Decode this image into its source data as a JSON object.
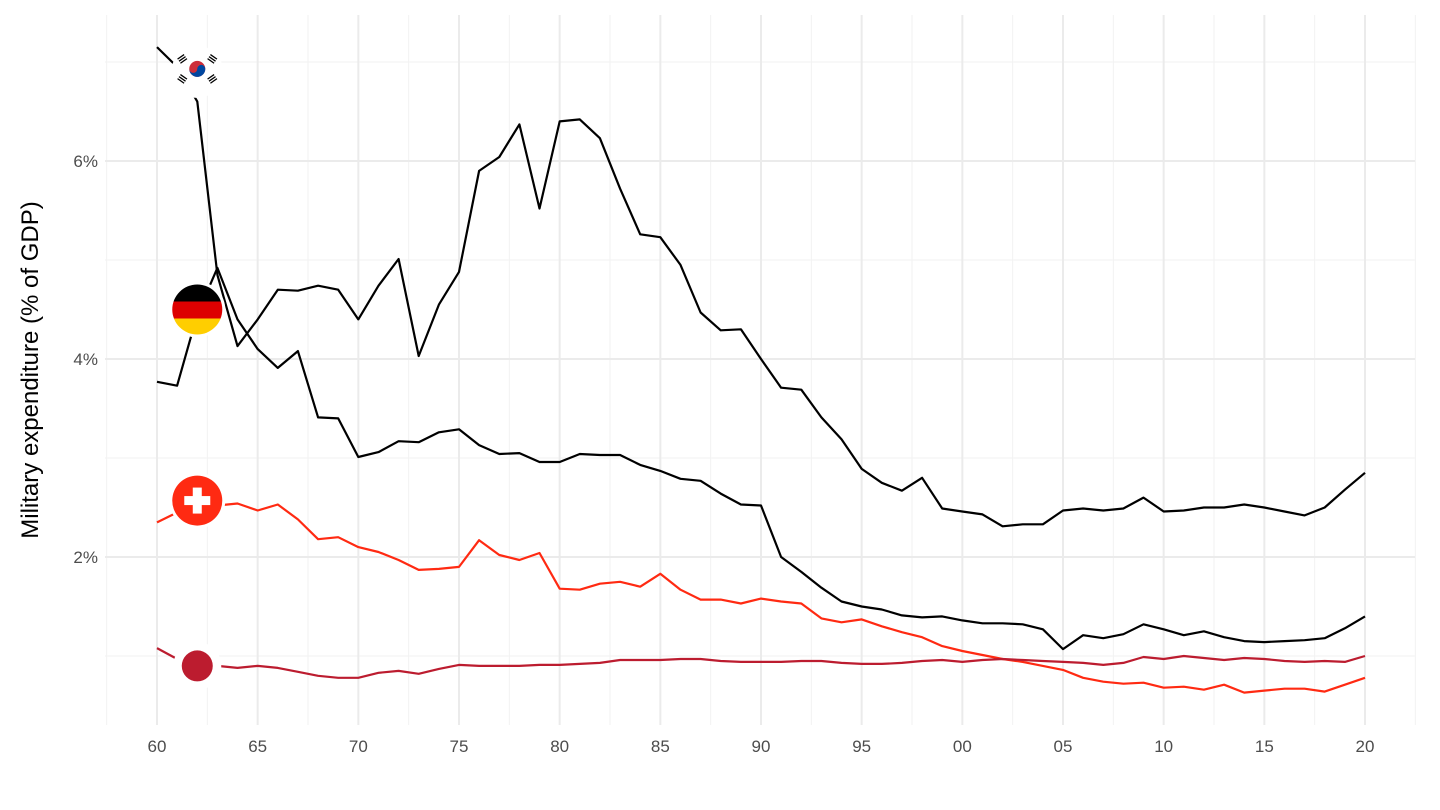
{
  "chart_data": {
    "type": "line",
    "title": "",
    "xlabel": "",
    "ylabel": "Military expenditure (% of GDP)",
    "xlim": [
      1957.5,
      2022.5
    ],
    "ylim": [
      0.3,
      7.45
    ],
    "grid": true,
    "x_ticks": [
      1960,
      1965,
      1970,
      1975,
      1980,
      1985,
      1990,
      1995,
      2000,
      2005,
      2010,
      2015,
      2020
    ],
    "x_tick_labels": [
      "60",
      "65",
      "70",
      "75",
      "80",
      "85",
      "90",
      "95",
      "00",
      "05",
      "10",
      "15",
      "20"
    ],
    "y_ticks": [
      2,
      4,
      6
    ],
    "y_tick_labels": [
      "2%",
      "4%",
      "6%"
    ],
    "x_start": 1960,
    "flag_year": 1962,
    "series": [
      {
        "name": "South Korea",
        "flag": "korea-flag",
        "color": "#000000",
        "flag_value": 6.9,
        "values": [
          7.15,
          6.95,
          6.6,
          4.85,
          4.13,
          4.4,
          4.7,
          4.69,
          4.74,
          4.7,
          4.4,
          4.74,
          5.01,
          4.03,
          4.55,
          4.88,
          5.9,
          6.04,
          6.37,
          5.52,
          6.4,
          6.42,
          6.23,
          5.72,
          5.26,
          5.23,
          4.95,
          4.47,
          4.29,
          4.3,
          4.0,
          3.71,
          3.69,
          3.41,
          3.19,
          2.89,
          2.75,
          2.67,
          2.8,
          2.49,
          2.46,
          2.43,
          2.31,
          2.33,
          2.33,
          2.47,
          2.49,
          2.47,
          2.49,
          2.6,
          2.46,
          2.47,
          2.5,
          2.5,
          2.53,
          2.5,
          2.46,
          2.42,
          2.5,
          2.68,
          2.85
        ]
      },
      {
        "name": "Germany",
        "flag": "germany-flag",
        "color": "#000000",
        "flag_value": 4.5,
        "values": [
          3.77,
          3.73,
          4.45,
          4.92,
          4.4,
          4.1,
          3.91,
          4.08,
          3.41,
          3.4,
          3.01,
          3.06,
          3.17,
          3.16,
          3.26,
          3.29,
          3.13,
          3.04,
          3.05,
          2.96,
          2.96,
          3.04,
          3.03,
          3.03,
          2.93,
          2.87,
          2.79,
          2.77,
          2.64,
          2.53,
          2.52,
          2.0,
          1.85,
          1.69,
          1.55,
          1.5,
          1.47,
          1.41,
          1.39,
          1.4,
          1.36,
          1.33,
          1.33,
          1.32,
          1.27,
          1.07,
          1.21,
          1.18,
          1.22,
          1.32,
          1.27,
          1.21,
          1.25,
          1.19,
          1.15,
          1.14,
          1.15,
          1.16,
          1.18,
          1.28,
          1.4
        ]
      },
      {
        "name": "Switzerland",
        "flag": "switzerland-flag",
        "color": "#FF2A12",
        "flag_value": 2.57,
        "values": [
          2.35,
          2.45,
          2.5,
          2.52,
          2.54,
          2.47,
          2.53,
          2.38,
          2.18,
          2.2,
          2.1,
          2.05,
          1.97,
          1.87,
          1.88,
          1.9,
          2.17,
          2.02,
          1.97,
          2.04,
          1.68,
          1.67,
          1.73,
          1.75,
          1.7,
          1.83,
          1.67,
          1.57,
          1.57,
          1.53,
          1.58,
          1.55,
          1.53,
          1.38,
          1.34,
          1.37,
          1.3,
          1.24,
          1.19,
          1.1,
          1.05,
          1.01,
          0.97,
          0.94,
          0.9,
          0.86,
          0.78,
          0.74,
          0.72,
          0.73,
          0.68,
          0.69,
          0.66,
          0.71,
          0.63,
          0.65,
          0.67,
          0.67,
          0.64,
          0.71,
          0.78
        ]
      },
      {
        "name": "Japan",
        "flag": "japan-flag",
        "color": "#BC1C2F",
        "flag_value": 0.9,
        "values": [
          1.08,
          0.97,
          0.92,
          0.9,
          0.88,
          0.9,
          0.88,
          0.84,
          0.8,
          0.78,
          0.78,
          0.83,
          0.85,
          0.82,
          0.87,
          0.91,
          0.9,
          0.9,
          0.9,
          0.91,
          0.91,
          0.92,
          0.93,
          0.96,
          0.96,
          0.96,
          0.97,
          0.97,
          0.95,
          0.94,
          0.94,
          0.94,
          0.95,
          0.95,
          0.93,
          0.92,
          0.92,
          0.93,
          0.95,
          0.96,
          0.94,
          0.96,
          0.97,
          0.96,
          0.95,
          0.94,
          0.93,
          0.91,
          0.93,
          0.99,
          0.97,
          1.0,
          0.98,
          0.96,
          0.98,
          0.97,
          0.95,
          0.94,
          0.95,
          0.94,
          1.0
        ]
      }
    ]
  }
}
